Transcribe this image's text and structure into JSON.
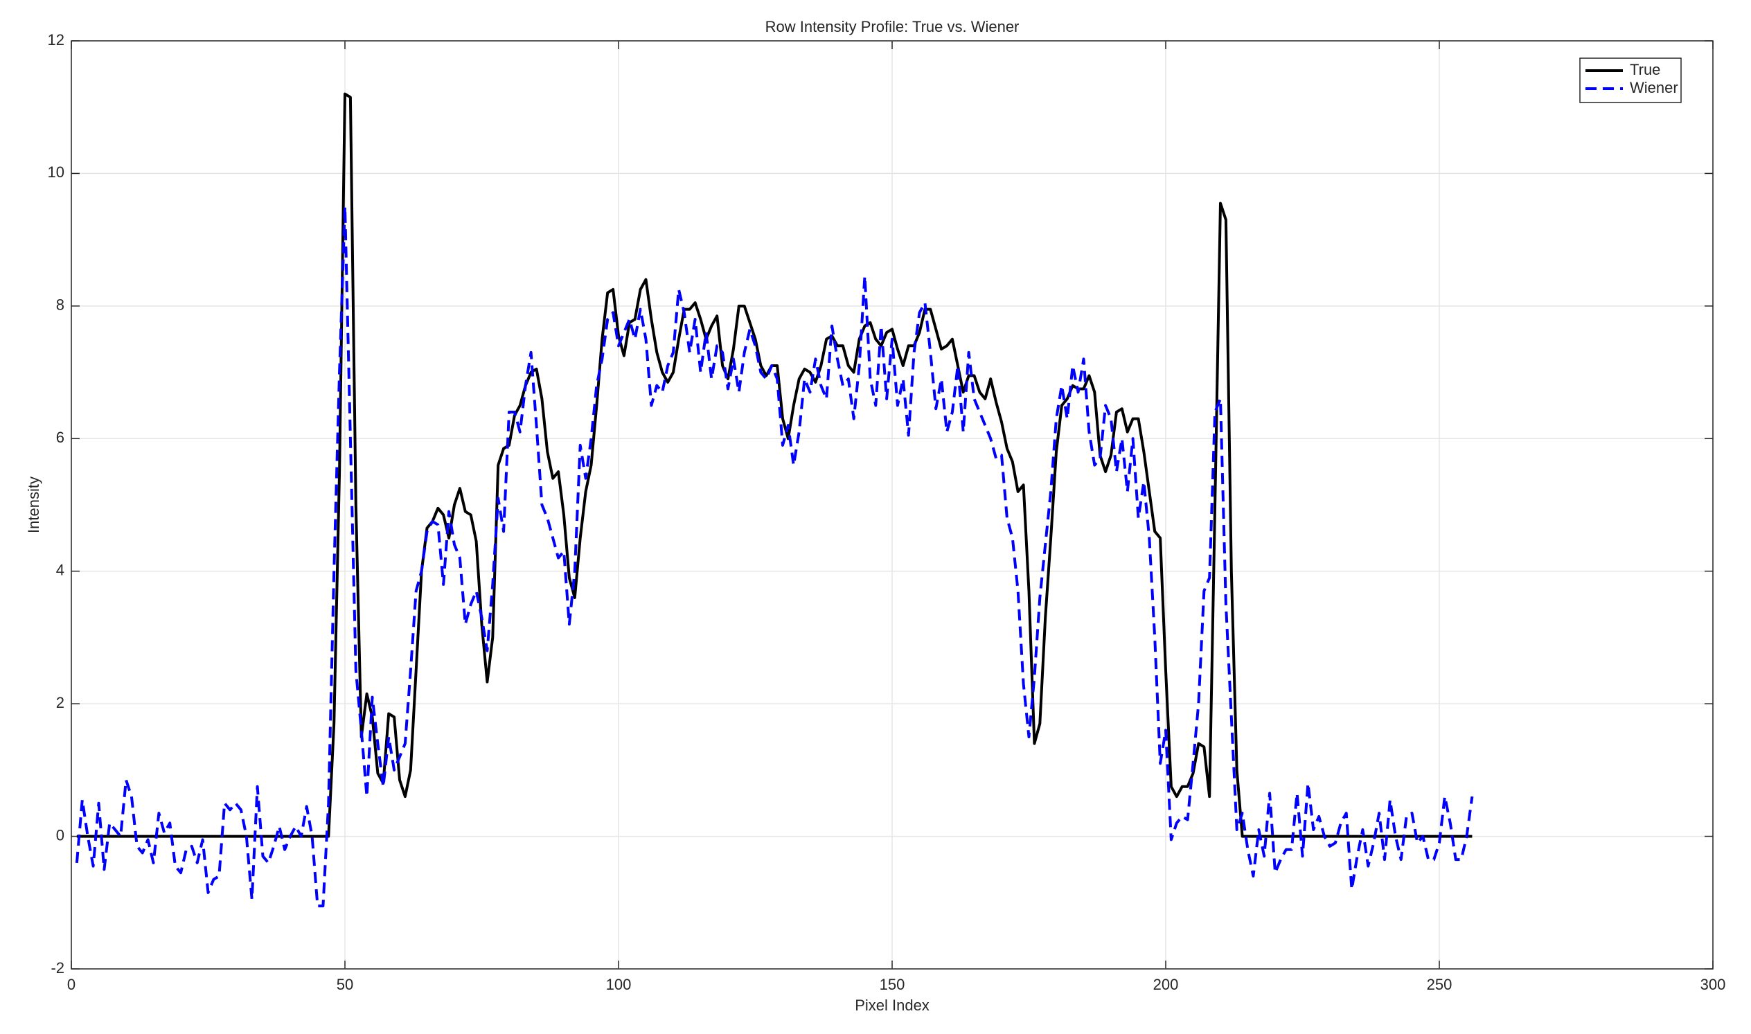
{
  "chart_data": {
    "type": "line",
    "title": "Row Intensity Profile: True vs. Wiener",
    "xlabel": "Pixel Index",
    "ylabel": "Intensity",
    "xlim": [
      0,
      300
    ],
    "xticks": [
      0,
      50,
      100,
      150,
      200,
      250,
      300
    ],
    "ylim": [
      -2,
      12
    ],
    "yticks": [
      -2,
      0,
      2,
      4,
      6,
      8,
      10,
      12
    ],
    "grid": true,
    "legend": "upper right",
    "x": [
      1,
      2,
      3,
      4,
      5,
      6,
      7,
      8,
      9,
      10,
      11,
      12,
      13,
      14,
      15,
      16,
      17,
      18,
      19,
      20,
      21,
      22,
      23,
      24,
      25,
      26,
      27,
      28,
      29,
      30,
      31,
      32,
      33,
      34,
      35,
      36,
      37,
      38,
      39,
      40,
      41,
      42,
      43,
      44,
      45,
      46,
      47,
      48,
      49,
      50,
      51,
      52,
      53,
      54,
      55,
      56,
      57,
      58,
      59,
      60,
      61,
      62,
      63,
      64,
      65,
      66,
      67,
      68,
      69,
      70,
      71,
      72,
      73,
      74,
      75,
      76,
      77,
      78,
      79,
      80,
      81,
      82,
      83,
      84,
      85,
      86,
      87,
      88,
      89,
      90,
      91,
      92,
      93,
      94,
      95,
      96,
      97,
      98,
      99,
      100,
      101,
      102,
      103,
      104,
      105,
      106,
      107,
      108,
      109,
      110,
      111,
      112,
      113,
      114,
      115,
      116,
      117,
      118,
      119,
      120,
      121,
      122,
      123,
      124,
      125,
      126,
      127,
      128,
      129,
      130,
      131,
      132,
      133,
      134,
      135,
      136,
      137,
      138,
      139,
      140,
      141,
      142,
      143,
      144,
      145,
      146,
      147,
      148,
      149,
      150,
      151,
      152,
      153,
      154,
      155,
      156,
      157,
      158,
      159,
      160,
      161,
      162,
      163,
      164,
      165,
      166,
      167,
      168,
      169,
      170,
      171,
      172,
      173,
      174,
      175,
      176,
      177,
      178,
      179,
      180,
      181,
      182,
      183,
      184,
      185,
      186,
      187,
      188,
      189,
      190,
      191,
      192,
      193,
      194,
      195,
      196,
      197,
      198,
      199,
      200,
      201,
      202,
      203,
      204,
      205,
      206,
      207,
      208,
      209,
      210,
      211,
      212,
      213,
      214,
      215,
      216,
      217,
      218,
      219,
      220,
      221,
      222,
      223,
      224,
      225,
      226,
      227,
      228,
      229,
      230,
      231,
      232,
      233,
      234,
      235,
      236,
      237,
      238,
      239,
      240,
      241,
      242,
      243,
      244,
      245,
      246,
      247,
      248,
      249,
      250,
      251,
      252,
      253,
      254,
      255,
      256
    ],
    "series": [
      {
        "name": "True",
        "color": "#000000",
        "dashed": false,
        "values": [
          0,
          0,
          0,
          0,
          0,
          0,
          0,
          0,
          0,
          0,
          0,
          0,
          0,
          0,
          0,
          0,
          0,
          0,
          0,
          0,
          0,
          0,
          0,
          0,
          0,
          0,
          0,
          0,
          0,
          0,
          0,
          0,
          0,
          0,
          0,
          0,
          0,
          0,
          0,
          0,
          0,
          0,
          0,
          0,
          0,
          0,
          0,
          1.7,
          5.5,
          11.2,
          11.15,
          5,
          1.5,
          2.15,
          1.8,
          0.95,
          0.8,
          1.85,
          1.8,
          0.85,
          0.6,
          1.0,
          2.5,
          4.0,
          4.65,
          4.75,
          4.95,
          4.85,
          4.5,
          5.0,
          5.25,
          4.9,
          4.85,
          4.45,
          3.2,
          2.33,
          3.0,
          5.6,
          5.85,
          5.9,
          6.35,
          6.5,
          6.8,
          7.0,
          7.05,
          6.6,
          5.8,
          5.4,
          5.5,
          4.85,
          3.9,
          3.6,
          4.5,
          5.2,
          5.6,
          6.5,
          7.5,
          8.2,
          8.25,
          7.55,
          7.25,
          7.75,
          7.8,
          8.25,
          8.4,
          7.8,
          7.3,
          7.0,
          6.85,
          7.0,
          7.5,
          7.95,
          7.95,
          8.05,
          7.8,
          7.5,
          7.7,
          7.85,
          7.1,
          6.9,
          7.35,
          8.0,
          8.0,
          7.75,
          7.5,
          7.1,
          6.95,
          7.1,
          7.1,
          6.3,
          6.0,
          6.5,
          6.9,
          7.05,
          7.0,
          6.85,
          7.1,
          7.5,
          7.55,
          7.4,
          7.4,
          7.1,
          7.0,
          7.5,
          7.7,
          7.75,
          7.5,
          7.4,
          7.6,
          7.65,
          7.35,
          7.1,
          7.4,
          7.4,
          7.6,
          7.95,
          7.95,
          7.65,
          7.35,
          7.4,
          7.5,
          7.1,
          6.7,
          6.95,
          6.95,
          6.7,
          6.6,
          6.9,
          6.55,
          6.25,
          5.85,
          5.65,
          5.2,
          5.3,
          3.7,
          1.4,
          1.7,
          3.3,
          4.5,
          5.8,
          6.5,
          6.6,
          6.8,
          6.75,
          6.75,
          6.95,
          6.7,
          5.75,
          5.5,
          5.75,
          6.4,
          6.45,
          6.1,
          6.3,
          6.3,
          5.8,
          5.2,
          4.6,
          4.5,
          2.5,
          0.75,
          0.6,
          0.75,
          0.75,
          0.95,
          1.4,
          1.35,
          0.6,
          5.0,
          9.55,
          9.3,
          4.0,
          1.0,
          0,
          0,
          0,
          0,
          0,
          0,
          0,
          0,
          0,
          0,
          0,
          0,
          0,
          0,
          0,
          0,
          0,
          0,
          0,
          0,
          0,
          0,
          0,
          0,
          0,
          0,
          0,
          0,
          0,
          0,
          0,
          0,
          0,
          0,
          0,
          0,
          0,
          0,
          0,
          0,
          0,
          0,
          0
        ]
      },
      {
        "name": "Wiener",
        "color": "#0000ff",
        "dashed": true,
        "values": [
          -0.4,
          0.55,
          0.0,
          -0.45,
          0.5,
          -0.5,
          0.2,
          0.1,
          0.0,
          0.85,
          0.6,
          -0.15,
          -0.25,
          -0.05,
          -0.4,
          0.35,
          0.05,
          0.2,
          -0.45,
          -0.55,
          -0.2,
          -0.15,
          -0.4,
          -0.05,
          -0.85,
          -0.65,
          -0.6,
          0.5,
          0.4,
          0.5,
          0.4,
          0.0,
          -0.95,
          0.75,
          -0.3,
          -0.4,
          -0.15,
          0.15,
          -0.2,
          0.0,
          0.15,
          0.0,
          0.45,
          0.0,
          -1.05,
          -1.05,
          0.5,
          4.0,
          7.0,
          9.5,
          6.0,
          2.5,
          1.6,
          0.6,
          2.1,
          1.4,
          0.75,
          1.5,
          1.0,
          1.2,
          1.4,
          2.5,
          3.7,
          4.0,
          4.6,
          4.75,
          4.7,
          3.8,
          4.9,
          4.4,
          4.2,
          3.2,
          3.5,
          3.7,
          3.3,
          2.8,
          3.8,
          5.1,
          4.6,
          6.4,
          6.4,
          6.1,
          6.8,
          7.3,
          6.2,
          5.0,
          4.8,
          4.5,
          4.2,
          4.3,
          3.2,
          4.0,
          5.9,
          5.4,
          6.0,
          6.8,
          7.2,
          7.8,
          7.9,
          7.4,
          7.6,
          7.8,
          7.5,
          7.95,
          7.5,
          6.5,
          6.8,
          6.7,
          7.1,
          7.3,
          8.25,
          7.9,
          7.3,
          7.8,
          7.0,
          7.6,
          6.9,
          7.4,
          7.3,
          6.75,
          7.2,
          6.7,
          7.3,
          7.65,
          7.4,
          7.0,
          6.9,
          7.1,
          6.9,
          5.9,
          6.2,
          5.6,
          6.1,
          6.9,
          6.7,
          7.2,
          6.8,
          6.6,
          7.7,
          7.2,
          6.8,
          6.9,
          6.3,
          7.1,
          8.45,
          6.9,
          6.5,
          7.7,
          6.6,
          7.5,
          6.5,
          6.9,
          6.05,
          7.3,
          7.9,
          8.05,
          7.3,
          6.45,
          6.9,
          6.1,
          6.4,
          7.1,
          6.1,
          7.3,
          6.6,
          6.4,
          6.2,
          6.0,
          5.7,
          5.75,
          4.8,
          4.5,
          3.7,
          2.3,
          1.5,
          2.4,
          3.6,
          4.4,
          5.2,
          6.3,
          6.8,
          6.3,
          7.1,
          6.7,
          7.2,
          6.1,
          5.6,
          5.7,
          6.5,
          6.3,
          5.5,
          6.0,
          5.2,
          6.0,
          4.8,
          5.35,
          4.5,
          3.0,
          1.1,
          1.6,
          -0.05,
          0.2,
          0.3,
          0.25,
          1.1,
          2.0,
          3.7,
          3.9,
          6.4,
          6.6,
          3.5,
          1.8,
          0.1,
          0.35,
          -0.2,
          -0.6,
          0.1,
          -0.3,
          0.65,
          -0.55,
          -0.35,
          -0.2,
          -0.2,
          0.65,
          -0.3,
          0.8,
          0.1,
          0.3,
          0.0,
          -0.15,
          -0.1,
          0.2,
          0.35,
          -0.8,
          -0.3,
          0.1,
          -0.45,
          -0.1,
          0.35,
          -0.35,
          0.55,
          0.0,
          -0.35,
          0.3,
          0.35,
          -0.1,
          0.0,
          -0.35,
          -0.35,
          -0.1,
          0.6,
          0.2,
          -0.35,
          -0.35,
          0.0,
          0.6
        ]
      }
    ]
  }
}
